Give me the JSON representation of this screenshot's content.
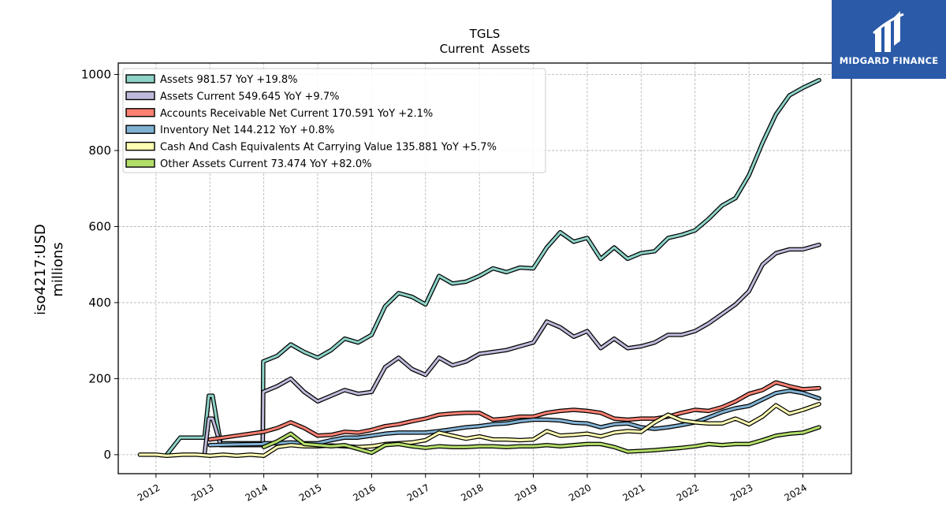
{
  "brand": {
    "name": "MIDGARD FINANCE",
    "bg": "#2a5aa8"
  },
  "chart_data": {
    "type": "line",
    "title": "TGLS",
    "subtitle": "Current  Assets",
    "ylabel_line1": "iso4217:USD",
    "ylabel_line2": "millions",
    "xlim": [
      2011.3,
      2024.9
    ],
    "ylim": [
      -50,
      1030
    ],
    "yticks": [
      0,
      200,
      400,
      600,
      800,
      1000
    ],
    "xticks": [
      2012,
      2013,
      2014,
      2015,
      2016,
      2017,
      2018,
      2019,
      2020,
      2021,
      2022,
      2023,
      2024
    ],
    "grid": true,
    "legend_position": "top-left",
    "series": [
      {
        "name": "Assets  981.57 YoY +19.8%",
        "color": "#8dd3c7",
        "points": [
          [
            2012.2,
            0
          ],
          [
            2012.45,
            45
          ],
          [
            2012.7,
            45
          ],
          [
            2012.9,
            45
          ],
          [
            2012.98,
            155
          ],
          [
            2013.05,
            155
          ],
          [
            2013.2,
            30
          ],
          [
            2013.5,
            30
          ],
          [
            2013.75,
            30
          ],
          [
            2013.98,
            30
          ],
          [
            2013.99,
            245
          ],
          [
            2014.25,
            260
          ],
          [
            2014.5,
            290
          ],
          [
            2014.75,
            270
          ],
          [
            2015.0,
            255
          ],
          [
            2015.25,
            275
          ],
          [
            2015.5,
            305
          ],
          [
            2015.75,
            295
          ],
          [
            2016.0,
            315
          ],
          [
            2016.25,
            390
          ],
          [
            2016.5,
            425
          ],
          [
            2016.75,
            415
          ],
          [
            2017.0,
            395
          ],
          [
            2017.25,
            470
          ],
          [
            2017.5,
            450
          ],
          [
            2017.75,
            455
          ],
          [
            2018.0,
            470
          ],
          [
            2018.25,
            490
          ],
          [
            2018.5,
            480
          ],
          [
            2018.75,
            492
          ],
          [
            2019.0,
            490
          ],
          [
            2019.25,
            545
          ],
          [
            2019.5,
            585
          ],
          [
            2019.75,
            560
          ],
          [
            2020.0,
            570
          ],
          [
            2020.25,
            515
          ],
          [
            2020.5,
            545
          ],
          [
            2020.75,
            515
          ],
          [
            2021.0,
            530
          ],
          [
            2021.25,
            535
          ],
          [
            2021.5,
            570
          ],
          [
            2021.75,
            578
          ],
          [
            2022.0,
            590
          ],
          [
            2022.25,
            620
          ],
          [
            2022.5,
            655
          ],
          [
            2022.75,
            675
          ],
          [
            2023.0,
            735
          ],
          [
            2023.25,
            820
          ],
          [
            2023.5,
            895
          ],
          [
            2023.75,
            945
          ],
          [
            2024.0,
            965
          ],
          [
            2024.3,
            985
          ]
        ]
      },
      {
        "name": "Assets Current  549.645 YoY +9.7%",
        "color": "#bebada",
        "points": [
          [
            2012.9,
            0
          ],
          [
            2012.98,
            95
          ],
          [
            2013.05,
            95
          ],
          [
            2013.2,
            25
          ],
          [
            2013.5,
            25
          ],
          [
            2013.75,
            25
          ],
          [
            2013.98,
            25
          ],
          [
            2013.99,
            165
          ],
          [
            2014.25,
            180
          ],
          [
            2014.5,
            200
          ],
          [
            2014.75,
            165
          ],
          [
            2015.0,
            140
          ],
          [
            2015.25,
            155
          ],
          [
            2015.5,
            170
          ],
          [
            2015.75,
            160
          ],
          [
            2016.0,
            165
          ],
          [
            2016.25,
            230
          ],
          [
            2016.5,
            255
          ],
          [
            2016.75,
            225
          ],
          [
            2017.0,
            210
          ],
          [
            2017.25,
            255
          ],
          [
            2017.5,
            235
          ],
          [
            2017.75,
            245
          ],
          [
            2018.0,
            265
          ],
          [
            2018.25,
            270
          ],
          [
            2018.5,
            275
          ],
          [
            2018.75,
            285
          ],
          [
            2019.0,
            295
          ],
          [
            2019.25,
            350
          ],
          [
            2019.5,
            335
          ],
          [
            2019.75,
            310
          ],
          [
            2020.0,
            325
          ],
          [
            2020.25,
            280
          ],
          [
            2020.5,
            305
          ],
          [
            2020.75,
            280
          ],
          [
            2021.0,
            285
          ],
          [
            2021.25,
            295
          ],
          [
            2021.5,
            315
          ],
          [
            2021.75,
            315
          ],
          [
            2022.0,
            325
          ],
          [
            2022.25,
            345
          ],
          [
            2022.5,
            370
          ],
          [
            2022.75,
            395
          ],
          [
            2023.0,
            430
          ],
          [
            2023.25,
            500
          ],
          [
            2023.5,
            530
          ],
          [
            2023.75,
            540
          ],
          [
            2024.0,
            540
          ],
          [
            2024.3,
            552
          ]
        ]
      },
      {
        "name": "Accounts Receivable Net Current  170.591 YoY +2.1%",
        "color": "#fb8072",
        "points": [
          [
            2013.0,
            40
          ],
          [
            2013.5,
            50
          ],
          [
            2014.0,
            60
          ],
          [
            2014.25,
            70
          ],
          [
            2014.5,
            85
          ],
          [
            2014.75,
            70
          ],
          [
            2015.0,
            50
          ],
          [
            2015.25,
            52
          ],
          [
            2015.5,
            60
          ],
          [
            2015.75,
            58
          ],
          [
            2016.0,
            65
          ],
          [
            2016.25,
            75
          ],
          [
            2016.5,
            80
          ],
          [
            2016.75,
            88
          ],
          [
            2017.0,
            95
          ],
          [
            2017.25,
            105
          ],
          [
            2017.5,
            108
          ],
          [
            2017.75,
            110
          ],
          [
            2018.0,
            110
          ],
          [
            2018.25,
            92
          ],
          [
            2018.5,
            95
          ],
          [
            2018.75,
            100
          ],
          [
            2019.0,
            100
          ],
          [
            2019.25,
            110
          ],
          [
            2019.5,
            115
          ],
          [
            2019.75,
            118
          ],
          [
            2020.0,
            115
          ],
          [
            2020.25,
            110
          ],
          [
            2020.5,
            95
          ],
          [
            2020.75,
            92
          ],
          [
            2021.0,
            95
          ],
          [
            2021.25,
            95
          ],
          [
            2021.5,
            100
          ],
          [
            2021.75,
            110
          ],
          [
            2022.0,
            118
          ],
          [
            2022.25,
            115
          ],
          [
            2022.5,
            125
          ],
          [
            2022.75,
            140
          ],
          [
            2023.0,
            160
          ],
          [
            2023.25,
            170
          ],
          [
            2023.5,
            190
          ],
          [
            2023.75,
            180
          ],
          [
            2024.0,
            172
          ],
          [
            2024.3,
            175
          ]
        ]
      },
      {
        "name": "Inventory Net  144.212 YoY +0.8%",
        "color": "#80b1d3",
        "points": [
          [
            2013.0,
            25
          ],
          [
            2013.5,
            27
          ],
          [
            2013.98,
            28
          ],
          [
            2014.0,
            30
          ],
          [
            2014.25,
            30
          ],
          [
            2014.5,
            32
          ],
          [
            2014.75,
            30
          ],
          [
            2015.0,
            30
          ],
          [
            2015.25,
            38
          ],
          [
            2015.5,
            45
          ],
          [
            2015.75,
            45
          ],
          [
            2016.0,
            50
          ],
          [
            2016.25,
            55
          ],
          [
            2016.5,
            58
          ],
          [
            2016.75,
            58
          ],
          [
            2017.0,
            58
          ],
          [
            2017.25,
            62
          ],
          [
            2017.5,
            67
          ],
          [
            2017.75,
            72
          ],
          [
            2018.0,
            75
          ],
          [
            2018.25,
            80
          ],
          [
            2018.5,
            82
          ],
          [
            2018.75,
            88
          ],
          [
            2019.0,
            92
          ],
          [
            2019.25,
            92
          ],
          [
            2019.5,
            90
          ],
          [
            2019.75,
            84
          ],
          [
            2020.0,
            82
          ],
          [
            2020.25,
            72
          ],
          [
            2020.5,
            80
          ],
          [
            2020.75,
            82
          ],
          [
            2021.0,
            72
          ],
          [
            2021.25,
            68
          ],
          [
            2021.5,
            72
          ],
          [
            2021.75,
            78
          ],
          [
            2022.0,
            85
          ],
          [
            2022.25,
            98
          ],
          [
            2022.5,
            112
          ],
          [
            2022.75,
            122
          ],
          [
            2023.0,
            128
          ],
          [
            2023.25,
            145
          ],
          [
            2023.5,
            162
          ],
          [
            2023.75,
            168
          ],
          [
            2024.0,
            162
          ],
          [
            2024.3,
            148
          ]
        ]
      },
      {
        "name": "Cash And Cash Equivalents At Carrying Value  135.881 YoY +5.7%",
        "color": "#ffffb3",
        "points": [
          [
            2011.7,
            0
          ],
          [
            2012.0,
            0
          ],
          [
            2012.2,
            -3
          ],
          [
            2012.5,
            0
          ],
          [
            2012.75,
            0
          ],
          [
            2013.0,
            -3
          ],
          [
            2013.25,
            0
          ],
          [
            2013.5,
            -3
          ],
          [
            2013.75,
            0
          ],
          [
            2014.0,
            -3
          ],
          [
            2014.25,
            20
          ],
          [
            2014.5,
            25
          ],
          [
            2014.75,
            22
          ],
          [
            2015.0,
            22
          ],
          [
            2015.25,
            24
          ],
          [
            2015.5,
            22
          ],
          [
            2015.75,
            20
          ],
          [
            2016.0,
            22
          ],
          [
            2016.25,
            28
          ],
          [
            2016.5,
            30
          ],
          [
            2016.75,
            32
          ],
          [
            2017.0,
            38
          ],
          [
            2017.25,
            58
          ],
          [
            2017.5,
            50
          ],
          [
            2017.75,
            42
          ],
          [
            2018.0,
            48
          ],
          [
            2018.25,
            40
          ],
          [
            2018.5,
            40
          ],
          [
            2018.75,
            38
          ],
          [
            2019.0,
            40
          ],
          [
            2019.25,
            62
          ],
          [
            2019.5,
            50
          ],
          [
            2019.75,
            52
          ],
          [
            2020.0,
            55
          ],
          [
            2020.25,
            48
          ],
          [
            2020.5,
            58
          ],
          [
            2020.75,
            62
          ],
          [
            2021.0,
            60
          ],
          [
            2021.25,
            85
          ],
          [
            2021.5,
            105
          ],
          [
            2021.75,
            90
          ],
          [
            2022.0,
            85
          ],
          [
            2022.25,
            82
          ],
          [
            2022.5,
            82
          ],
          [
            2022.75,
            95
          ],
          [
            2023.0,
            80
          ],
          [
            2023.25,
            100
          ],
          [
            2023.5,
            130
          ],
          [
            2023.75,
            108
          ],
          [
            2024.0,
            118
          ],
          [
            2024.3,
            133
          ]
        ]
      },
      {
        "name": "Other Assets Current  73.474 YoY +82.0%",
        "color": "#b3de69",
        "points": [
          [
            2014.0,
            20
          ],
          [
            2014.25,
            35
          ],
          [
            2014.5,
            55
          ],
          [
            2014.75,
            28
          ],
          [
            2015.0,
            25
          ],
          [
            2015.25,
            22
          ],
          [
            2015.5,
            25
          ],
          [
            2015.75,
            15
          ],
          [
            2016.0,
            5
          ],
          [
            2016.25,
            25
          ],
          [
            2016.5,
            28
          ],
          [
            2016.75,
            22
          ],
          [
            2017.0,
            18
          ],
          [
            2017.25,
            22
          ],
          [
            2017.5,
            20
          ],
          [
            2017.75,
            20
          ],
          [
            2018.0,
            22
          ],
          [
            2018.25,
            22
          ],
          [
            2018.5,
            20
          ],
          [
            2018.75,
            22
          ],
          [
            2019.0,
            22
          ],
          [
            2019.25,
            25
          ],
          [
            2019.5,
            22
          ],
          [
            2019.75,
            25
          ],
          [
            2020.0,
            28
          ],
          [
            2020.25,
            28
          ],
          [
            2020.5,
            20
          ],
          [
            2020.75,
            8
          ],
          [
            2021.0,
            10
          ],
          [
            2021.25,
            12
          ],
          [
            2021.5,
            15
          ],
          [
            2021.75,
            18
          ],
          [
            2022.0,
            22
          ],
          [
            2022.25,
            28
          ],
          [
            2022.5,
            25
          ],
          [
            2022.75,
            28
          ],
          [
            2023.0,
            28
          ],
          [
            2023.25,
            38
          ],
          [
            2023.5,
            50
          ],
          [
            2023.75,
            55
          ],
          [
            2024.0,
            58
          ],
          [
            2024.3,
            72
          ]
        ]
      }
    ]
  }
}
